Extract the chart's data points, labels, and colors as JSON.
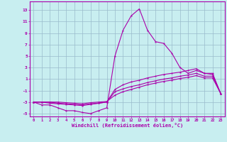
{
  "xlabel": "Windchill (Refroidissement éolien,°C)",
  "xlim": [
    -0.5,
    23.5
  ],
  "ylim": [
    -5.5,
    14.5
  ],
  "xticks": [
    0,
    1,
    2,
    3,
    4,
    5,
    6,
    7,
    8,
    9,
    10,
    11,
    12,
    13,
    14,
    15,
    16,
    17,
    18,
    19,
    20,
    21,
    22,
    23
  ],
  "yticks": [
    -5,
    -3,
    -1,
    1,
    3,
    5,
    7,
    9,
    11,
    13
  ],
  "bg_color": "#c8eef0",
  "line_color": "#aa00aa",
  "grid_color": "#99bbcc",
  "lines": [
    {
      "x": [
        0,
        1,
        2,
        3,
        4,
        5,
        6,
        7,
        8,
        9,
        10,
        11,
        12,
        13,
        14,
        15,
        16,
        17,
        18,
        19,
        20,
        21,
        22,
        23
      ],
      "y": [
        -3.0,
        -3.5,
        -3.5,
        -4.0,
        -4.5,
        -4.5,
        -4.8,
        -5.0,
        -4.5,
        -4.0,
        5.0,
        9.5,
        12.0,
        13.2,
        9.5,
        7.5,
        7.2,
        5.5,
        3.0,
        2.0,
        2.5,
        2.0,
        2.0,
        -1.5
      ]
    },
    {
      "x": [
        0,
        1,
        2,
        3,
        4,
        5,
        6,
        7,
        8,
        9,
        10,
        11,
        12,
        13,
        14,
        15,
        16,
        17,
        18,
        19,
        20,
        21,
        22,
        23
      ],
      "y": [
        -3.0,
        -3.0,
        -3.2,
        -3.3,
        -3.4,
        -3.5,
        -3.6,
        -3.4,
        -3.2,
        -3.0,
        -0.8,
        0.0,
        0.5,
        0.8,
        1.2,
        1.5,
        1.8,
        2.0,
        2.2,
        2.5,
        2.8,
        2.0,
        1.8,
        -1.5
      ]
    },
    {
      "x": [
        0,
        1,
        2,
        3,
        4,
        5,
        6,
        7,
        8,
        9,
        10,
        11,
        12,
        13,
        14,
        15,
        16,
        17,
        18,
        19,
        20,
        21,
        22,
        23
      ],
      "y": [
        -3.0,
        -3.0,
        -3.0,
        -3.2,
        -3.3,
        -3.4,
        -3.5,
        -3.3,
        -3.2,
        -3.0,
        -1.2,
        -0.7,
        -0.3,
        0.0,
        0.4,
        0.7,
        1.0,
        1.2,
        1.5,
        1.7,
        2.0,
        1.5,
        1.5,
        -1.5
      ]
    },
    {
      "x": [
        0,
        1,
        2,
        3,
        4,
        5,
        6,
        7,
        8,
        9,
        10,
        11,
        12,
        13,
        14,
        15,
        16,
        17,
        18,
        19,
        20,
        21,
        22,
        23
      ],
      "y": [
        -3.0,
        -3.0,
        -3.0,
        -3.0,
        -3.1,
        -3.2,
        -3.3,
        -3.1,
        -3.0,
        -2.9,
        -1.8,
        -1.2,
        -0.8,
        -0.4,
        0.0,
        0.3,
        0.6,
        0.8,
        1.1,
        1.3,
        1.6,
        1.2,
        1.2,
        -1.5
      ]
    }
  ]
}
